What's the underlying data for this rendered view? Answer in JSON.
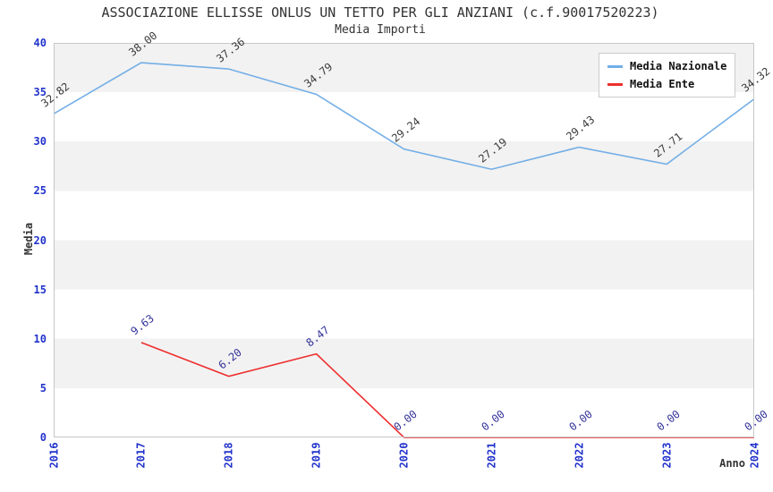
{
  "header": {
    "title": "ASSOCIAZIONE ELLISSE ONLUS UN TETTO PER GLI ANZIANI (c.f.90017520223)",
    "subtitle": "Media Importi"
  },
  "legend": {
    "position": "top-right",
    "items": [
      {
        "label": "Media Nazionale",
        "color": "#73aee6"
      },
      {
        "label": "Media Ente",
        "color": "#ee2f2f"
      }
    ]
  },
  "chart_data": {
    "type": "line",
    "x": [
      2016,
      2017,
      2018,
      2019,
      2020,
      2021,
      2022,
      2023,
      2024
    ],
    "xlabel": "Anno",
    "ylabel": "Media",
    "ylim": [
      0,
      40
    ],
    "ytick_step": 5,
    "yticks": [
      0,
      5,
      10,
      15,
      20,
      25,
      30,
      35,
      40
    ],
    "grid_bands": true,
    "band_color": "#f2f2f2",
    "series": [
      {
        "name": "Media Nazionale",
        "color": "#73aee6",
        "label_color": "#3c3c3c",
        "values": [
          32.82,
          38.0,
          37.36,
          34.79,
          29.24,
          27.19,
          29.43,
          27.71,
          34.32
        ],
        "labels": [
          "32.82",
          "38.00",
          "37.36",
          "34.79",
          "29.24",
          "27.19",
          "29.43",
          "27.71",
          "34.32"
        ]
      },
      {
        "name": "Media Ente",
        "color": "#ee2f2f",
        "label_color": "#333399",
        "values": [
          null,
          9.63,
          6.2,
          8.47,
          0.0,
          0.0,
          0.0,
          0.0,
          0.0
        ],
        "labels": [
          null,
          "9.63",
          "6.20",
          "8.47",
          "0.00",
          "0.00",
          "0.00",
          "0.00",
          "0.00"
        ]
      }
    ],
    "axis_tick_color": "#2233cc",
    "axis_title_color": "#333333",
    "plot_border_color": "#c6c6c6"
  }
}
